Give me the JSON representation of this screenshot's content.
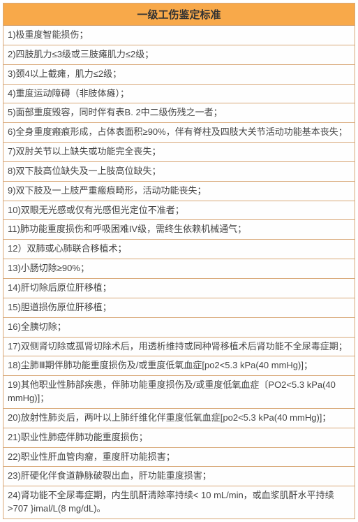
{
  "table": {
    "title": "一级工伤鉴定标准",
    "header_bg": "#f8a94a",
    "border_color": "#d8a878",
    "row_bg": "#fefefe",
    "text_color": "#444",
    "title_fontsize": 15,
    "row_fontsize": 13,
    "rows": [
      "1)极重度智能损伤；",
      "2)四肢肌力≤3级或三肢瘫肌力≤2级；",
      "3)颈4以上截瘫，肌力≤2级；",
      "4)重度运动障碍（非肢体瘫）；",
      "5)面部重度毁容，同时伴有表B. 2中二级伤残之一者；",
      "6)全身重度瘢痕形成，占体表面积≥90%，伴有脊柱及四肢大关节活动功能基本丧失；",
      "7)双肘关节以上缺失或功能完全丧失；",
      "8)双下肢高位缺失及一上肢高位缺失；",
      "9)双下肢及一上肢严重瘢痕畸形，活动功能丧失；",
      "10)双眼无光感或仅有光感但光定位不准者；",
      "11)肺功能重度损伤和呼吸困难IV级，需终生依赖机械通气；",
      "12）双肺或心肺联合移植术；",
      "13)小肠切除≥90%；",
      "14)肝切除后原位肝移植；",
      "15)胆道损伤原位肝移植；",
      "16)全胰切除；",
      "17)双侧肾切除或孤肾切除术后，用透析维持或同种肾移植术后肾功能不全尿毒症期；",
      "18)尘肺Ⅲ期伴肺功能重度损伤及/或重度低氧血症[po2<5.3 kPa(40 mmHg)]；",
      "19)其他职业性肺部疾患，伴肺功能重度损伤及/或重度低氧血症〔PO2<5.3 kPa(40 mmHg)]；",
      "20)放射性肺炎后，两叶以上肺纤维化伴重度低氧血症[po2<5.3 kPa(40 mmHg)]；",
      "21)职业性肺癌伴肺功能重度损伤；",
      "22)职业性肝血管肉瘤，重度肝功能损害；",
      "23)肝硬化伴食道静脉破裂出血，肝功能重度损害；",
      "24)肾功能不全尿毒症期，内生肌酐清除率持续< 10 mL/min，或血浆肌酐水平持续>707 }imal/L(8 mg/dL)。"
    ]
  }
}
